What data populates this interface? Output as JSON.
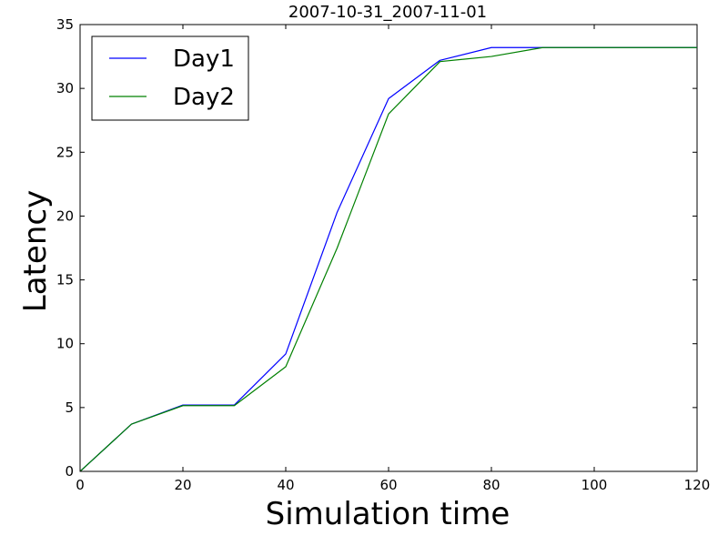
{
  "chart_data": {
    "type": "line",
    "title": "2007-10-31_2007-11-01",
    "xlabel": "Simulation time",
    "ylabel": "Latency",
    "xlim": [
      0,
      120
    ],
    "ylim": [
      0,
      35
    ],
    "x_ticks": [
      0,
      20,
      40,
      60,
      80,
      100,
      120
    ],
    "y_ticks": [
      0,
      5,
      10,
      15,
      20,
      25,
      30,
      35
    ],
    "grid": false,
    "legend": "top-left",
    "series": [
      {
        "name": "Day1",
        "color": "#0000ff",
        "x": [
          0,
          10,
          20,
          30,
          40,
          50,
          60,
          70,
          80,
          90,
          100,
          110,
          120
        ],
        "y": [
          0,
          3.7,
          5.2,
          5.2,
          9.2,
          20.3,
          29.2,
          32.2,
          33.2,
          33.2,
          33.2,
          33.2,
          33.2
        ]
      },
      {
        "name": "Day2",
        "color": "#008000",
        "x": [
          0,
          10,
          20,
          30,
          40,
          50,
          60,
          70,
          80,
          90,
          100,
          110,
          120
        ],
        "y": [
          0,
          3.7,
          5.15,
          5.15,
          8.2,
          17.5,
          28.0,
          32.1,
          32.5,
          33.2,
          33.2,
          33.2,
          33.2
        ]
      }
    ]
  }
}
